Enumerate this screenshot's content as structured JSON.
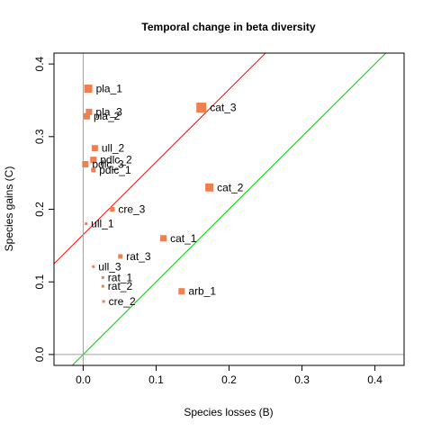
{
  "chart_data": {
    "type": "scatter",
    "title": "Temporal change in beta diversity",
    "xlabel": "Species losses (B)",
    "ylabel": "Species gains (C)",
    "xlim": [
      -0.04,
      0.44
    ],
    "ylim": [
      -0.015,
      0.415
    ],
    "xticks": [
      "0.0",
      "0.1",
      "0.2",
      "0.3",
      "0.4"
    ],
    "yticks": [
      "0.0",
      "0.1",
      "0.2",
      "0.3",
      "0.4"
    ],
    "grid": false,
    "point_color": "#f07f4f",
    "points": [
      {
        "label": "pla_1",
        "x": 0.007,
        "y": 0.366,
        "size": 4
      },
      {
        "label": "pla_3",
        "x": 0.008,
        "y": 0.334,
        "size": 3
      },
      {
        "label": "pla_2",
        "x": 0.005,
        "y": 0.328,
        "size": 3
      },
      {
        "label": "cat_3",
        "x": 0.162,
        "y": 0.34,
        "size": 5
      },
      {
        "label": "ull_2",
        "x": 0.016,
        "y": 0.284,
        "size": 3
      },
      {
        "label": "pdlc_2",
        "x": 0.014,
        "y": 0.268,
        "size": 3
      },
      {
        "label": "pdlc_3",
        "x": 0.003,
        "y": 0.262,
        "size": 3
      },
      {
        "label": "pdlc_1",
        "x": 0.014,
        "y": 0.254,
        "size": 2
      },
      {
        "label": "cat_2",
        "x": 0.173,
        "y": 0.23,
        "size": 4
      },
      {
        "label": "cre_3",
        "x": 0.04,
        "y": 0.2,
        "size": 2
      },
      {
        "label": "ull_1",
        "x": 0.004,
        "y": 0.18,
        "size": 1
      },
      {
        "label": "cat_1",
        "x": 0.11,
        "y": 0.16,
        "size": 3
      },
      {
        "label": "rat_3",
        "x": 0.051,
        "y": 0.135,
        "size": 2
      },
      {
        "label": "ull_3",
        "x": 0.014,
        "y": 0.121,
        "size": 1
      },
      {
        "label": "rat_1",
        "x": 0.027,
        "y": 0.106,
        "size": 1
      },
      {
        "label": "rat_2",
        "x": 0.027,
        "y": 0.094,
        "size": 1
      },
      {
        "label": "arb_1",
        "x": 0.135,
        "y": 0.087,
        "size": 3
      },
      {
        "label": "cre_2",
        "x": 0.028,
        "y": 0.073,
        "size": 1
      }
    ],
    "reference_lines": [
      {
        "color": "#ff0000",
        "slope": 1,
        "intercept": 0.165
      },
      {
        "color": "#00cc00",
        "slope": 1,
        "intercept": 0.0
      },
      {
        "color": "#a0a0a0",
        "type": "vertical",
        "x": 0
      },
      {
        "color": "#a0a0a0",
        "type": "horizontal",
        "y": 0
      }
    ]
  }
}
